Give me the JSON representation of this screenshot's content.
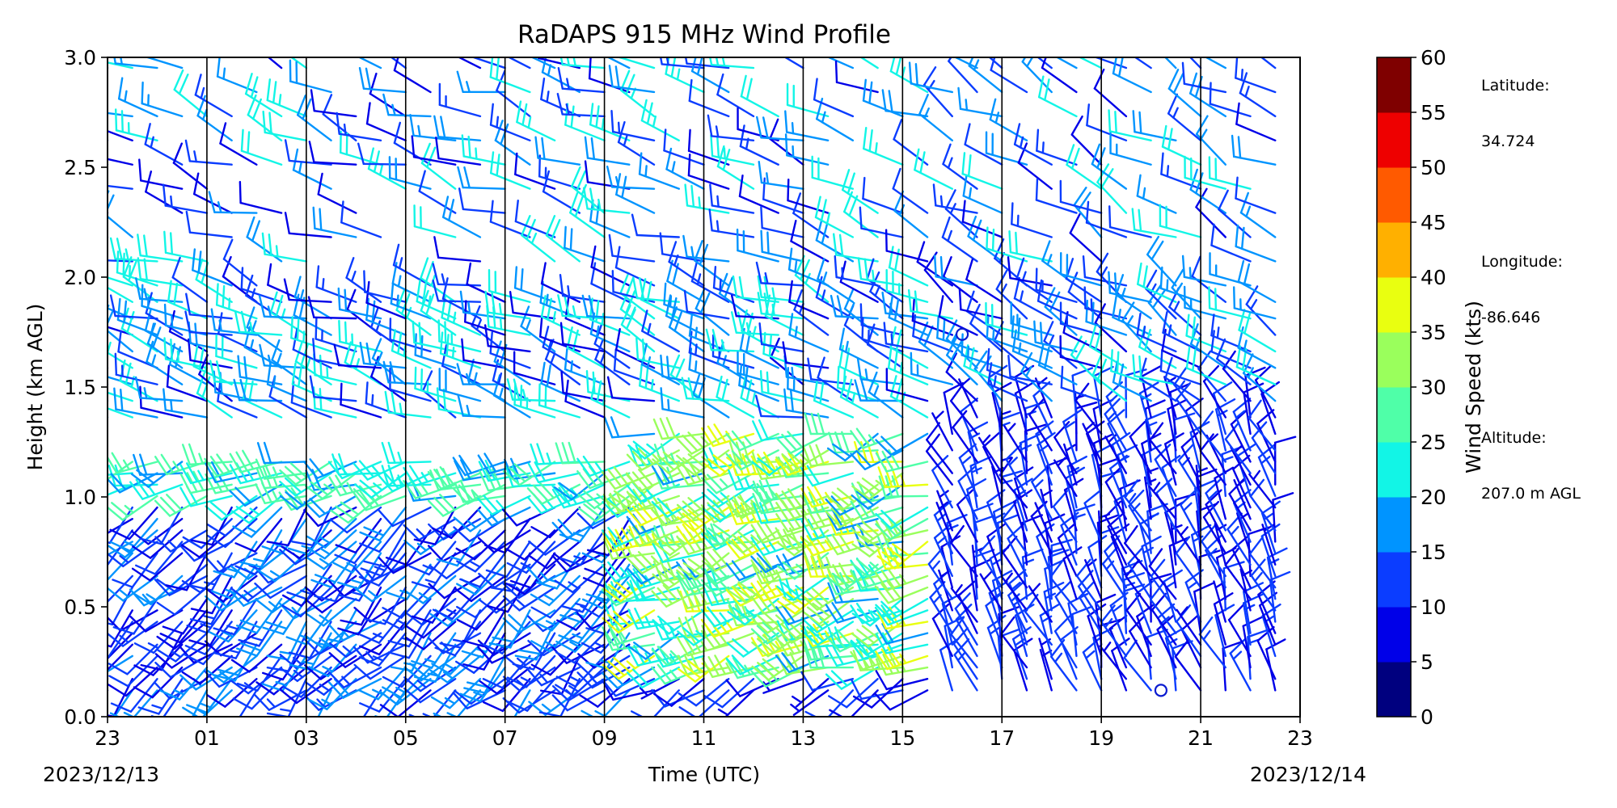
{
  "chart_data": {
    "type": "wind_barb_profile",
    "title": "RaDAPS 915 MHz Wind Profile",
    "xlabel": "Time (UTC)",
    "ylabel": "Height (km AGL)",
    "x_ticks": [
      "23",
      "01",
      "03",
      "05",
      "07",
      "09",
      "11",
      "13",
      "15",
      "17",
      "19",
      "21",
      "23"
    ],
    "x_range_hours_utc": [
      23,
      47
    ],
    "date_start": "2023/12/13",
    "date_end": "2023/12/14",
    "y_ticks": [
      "0.0",
      "0.5",
      "1.0",
      "1.5",
      "2.0",
      "2.5",
      "3.0"
    ],
    "ylim": [
      0.0,
      3.0
    ],
    "vertical_gridlines_every_hours": 2,
    "colorbar": {
      "label": "Wind Speed (kts)",
      "ticks": [
        "0",
        "5",
        "10",
        "15",
        "20",
        "25",
        "30",
        "35",
        "40",
        "45",
        "50",
        "55",
        "60"
      ],
      "range": [
        0,
        60
      ],
      "colors": [
        "#00007f",
        "#0000e8",
        "#0b3dff",
        "#0094ff",
        "#12f5e6",
        "#4fffa8",
        "#9aff5c",
        "#e9ff10",
        "#ffb000",
        "#ff5a00",
        "#ee0000",
        "#7f0000"
      ]
    },
    "station": {
      "lat_label": "Latitude:",
      "lat": "34.724",
      "lon_label": "Longitude:",
      "lon": "-86.646",
      "alt_label": "Altitude:",
      "alt": "207.0 m AGL"
    },
    "profile_columns_per_hour": 2,
    "wind_regimes": [
      {
        "hours": [
          23,
          34
        ],
        "height_km": [
          0.0,
          1.0
        ],
        "dir_deg": 225,
        "speed_kts": [
          8,
          18
        ]
      },
      {
        "hours": [
          23,
          34
        ],
        "height_km": [
          0.4,
          1.2
        ],
        "dir_deg": 250,
        "speed_kts": [
          18,
          30
        ]
      },
      {
        "hours": [
          34,
          40
        ],
        "height_km": [
          0.2,
          1.3
        ],
        "dir_deg": 250,
        "speed_kts": [
          18,
          38
        ]
      },
      {
        "hours": [
          34,
          40
        ],
        "height_km": [
          0.0,
          0.3
        ],
        "dir_deg": 240,
        "speed_kts": [
          6,
          12
        ]
      },
      {
        "hours": [
          23,
          40
        ],
        "height_km": [
          1.3,
          3.0
        ],
        "dir_deg": 290,
        "speed_kts": [
          8,
          25
        ]
      },
      {
        "hours": [
          40,
          47
        ],
        "height_km": [
          0.0,
          1.4
        ],
        "dir_deg": 340,
        "speed_kts": [
          6,
          15
        ]
      },
      {
        "hours": [
          40,
          47
        ],
        "height_km": [
          1.4,
          3.0
        ],
        "dir_deg": 300,
        "speed_kts": [
          8,
          22
        ]
      }
    ],
    "calm_markers": [
      {
        "hour_utc": 40.2,
        "height_km": 1.74
      },
      {
        "hour_utc": 44.2,
        "height_km": 0.12
      }
    ]
  }
}
